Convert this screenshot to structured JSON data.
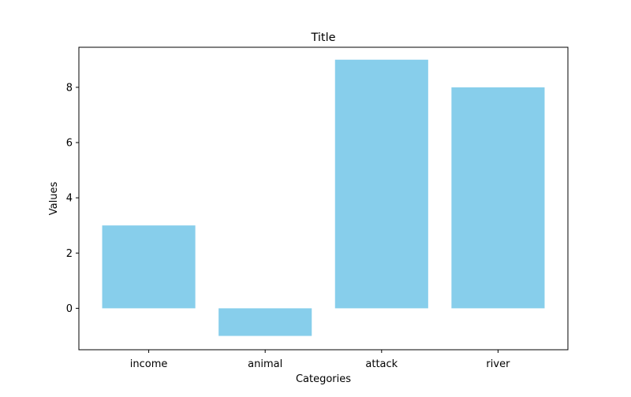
{
  "chart_data": {
    "type": "bar",
    "title": "Title",
    "xlabel": "Categories",
    "ylabel": "Values",
    "categories": [
      "income",
      "animal",
      "attack",
      "river"
    ],
    "values": [
      3,
      -1,
      9,
      8
    ],
    "ylim": [
      -1.5,
      9.45
    ],
    "yticks": [
      0,
      2,
      4,
      6,
      8
    ],
    "grid": false,
    "bar_color": "#87CEEB"
  }
}
